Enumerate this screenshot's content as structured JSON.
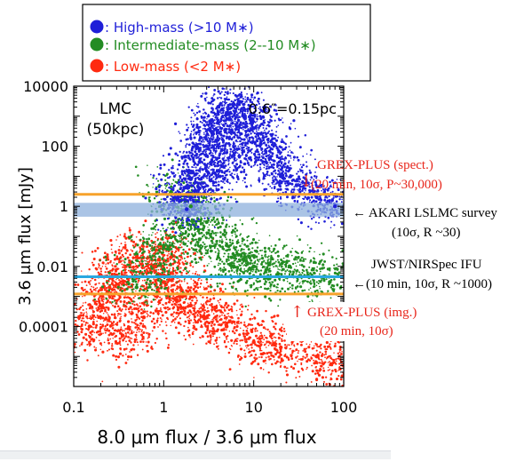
{
  "legend": [
    {
      "label": ": High-mass (>10 M∗)",
      "color": "#1f1fd8"
    },
    {
      "label": ": Intermediate-mass (2--10 M∗)",
      "color": "#238c23"
    },
    {
      "label": ": Low-mass (<2 M∗)",
      "color": "#ff2a10"
    }
  ],
  "panel_labels": {
    "galaxy": "LMC",
    "distance": "(50kpc)",
    "scale": "0.6″=0.15pc"
  },
  "annotations": {
    "grex_spec": {
      "arrow": "↓",
      "line1": "GREX-PLUS (spect.)",
      "line2": "(20 min, 10σ, P~30,000)",
      "color": "#e8261b"
    },
    "akari": {
      "line1": "← AKARI LSLMC survey",
      "line2": "(10σ, R ~30)"
    },
    "jwst": {
      "line1": "JWST/NIRSpec IFU",
      "line2": "←(10 min, 10σ, R ~1000)"
    },
    "grex_img": {
      "arrow": "↑",
      "line1": "GREX-PLUS (img.)",
      "line2": "(20 min, 10σ)",
      "color": "#e8261b"
    }
  },
  "chart_data": {
    "type": "scatter",
    "xlabel": "8.0 μm flux / 3.6 μm flux",
    "ylabel": "3.6 μm flux [mJy]",
    "xscale": "log",
    "yscale": "log",
    "xlim": [
      0.1,
      100
    ],
    "ylim": [
      1e-06,
      10000
    ],
    "x_ticks": [
      0.1,
      1,
      10,
      100
    ],
    "x_tick_labels": [
      "0.1",
      "1",
      "10",
      "100"
    ],
    "y_ticks": [
      0.0001,
      0.01,
      1,
      100,
      10000
    ],
    "y_tick_labels": [
      "0.0001",
      "0.01",
      "1",
      "100",
      "10000"
    ],
    "grid": false,
    "series": [
      {
        "name": "High-mass (>10 M∗)",
        "color": "#1f1fd8",
        "points": [
          [
            1.5,
            1.5
          ],
          [
            2,
            8
          ],
          [
            2.5,
            30
          ],
          [
            3,
            100
          ],
          [
            3.5,
            300
          ],
          [
            4,
            600
          ],
          [
            5,
            1200
          ],
          [
            6,
            2500
          ],
          [
            8,
            1000
          ],
          [
            10,
            400
          ],
          [
            12,
            120
          ],
          [
            15,
            40
          ],
          [
            20,
            10
          ],
          [
            30,
            5
          ],
          [
            50,
            2
          ],
          [
            80,
            1
          ],
          [
            2.5,
            4
          ],
          [
            4,
            15
          ],
          [
            6,
            50
          ],
          [
            1.8,
            0.8
          ]
        ]
      },
      {
        "name": "Intermediate-mass (2--10 M∗)",
        "color": "#238c23",
        "points": [
          [
            0.5,
            0.002
          ],
          [
            0.8,
            0.01
          ],
          [
            1,
            0.05
          ],
          [
            1.5,
            0.2
          ],
          [
            2,
            1
          ],
          [
            3,
            0.3
          ],
          [
            5,
            0.05
          ],
          [
            8,
            0.02
          ],
          [
            10,
            0.01
          ],
          [
            15,
            0.004
          ],
          [
            25,
            0.01
          ],
          [
            40,
            0.005
          ],
          [
            70,
            0.003
          ],
          [
            1.2,
            3
          ],
          [
            2.5,
            0.08
          ],
          [
            6,
            0.01
          ]
        ]
      },
      {
        "name": "Low-mass (<2 M∗)",
        "color": "#ff2a10",
        "points": [
          [
            0.15,
            0.0001
          ],
          [
            0.2,
            0.0005
          ],
          [
            0.25,
            0.002
          ],
          [
            0.3,
            0.005
          ],
          [
            0.5,
            0.02
          ],
          [
            0.8,
            0.01
          ],
          [
            1,
            0.003
          ],
          [
            1.5,
            0.001
          ],
          [
            2,
            0.0005
          ],
          [
            3,
            0.0002
          ],
          [
            5,
            0.0001
          ],
          [
            10,
            3e-05
          ],
          [
            20,
            2e-05
          ],
          [
            50,
            1e-05
          ],
          [
            100,
            5e-06
          ],
          [
            0.35,
            5e-05
          ],
          [
            0.6,
            0.0002
          ],
          [
            1.2,
            0.02
          ]
        ]
      }
    ],
    "horizontal_lines": [
      {
        "label": "GREX-PLUS (spect.)",
        "y": 2.5,
        "color": "#f7a22b"
      },
      {
        "label": "JWST/NIRSpec IFU",
        "y": 0.0045,
        "color": "#29a8e0"
      },
      {
        "label": "GREX-PLUS (img.)",
        "y": 0.0012,
        "color": "#f7a22b"
      }
    ],
    "bands": [
      {
        "label": "AKARI LSLMC survey",
        "y_range": [
          0.45,
          1.3
        ],
        "color": "#8db0dc"
      }
    ]
  }
}
